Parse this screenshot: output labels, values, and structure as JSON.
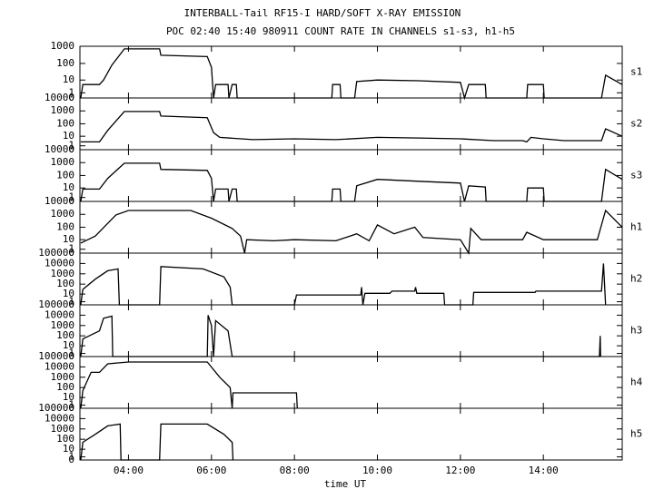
{
  "chart_data": [
    {
      "type": "line",
      "title": "INTERBALL-Tail RF15-I HARD/SOFT X-RAY EMISSION",
      "subtitle": "POC 02:40 15:40 980911  COUNT RATE IN CHANNELS s1-s3, h1-h5",
      "yscale": "log1p",
      "ylim": [
        0,
        1000
      ],
      "yticks": [
        0,
        1,
        10,
        100,
        1000
      ],
      "x": [
        2.85,
        2.9,
        3.3,
        3.4,
        3.6,
        3.9,
        4.75,
        4.78,
        5.9,
        6.0,
        6.05,
        6.1,
        6.4,
        6.42,
        6.5,
        6.6,
        6.62,
        8.9,
        8.92,
        9.1,
        9.12,
        9.45,
        9.5,
        10,
        11,
        12,
        12.1,
        12.2,
        12.6,
        12.62,
        13.6,
        13.62,
        14.0,
        14.02,
        15.4,
        15.5,
        15.9
      ],
      "series": [
        {
          "name": "s1",
          "color": "#000000",
          "values": [
            0,
            5,
            5,
            10,
            80,
            700,
            700,
            300,
            250,
            60,
            0,
            5,
            5,
            0,
            5,
            5,
            0,
            0,
            5,
            5,
            0,
            0,
            8,
            10,
            9,
            7,
            0,
            5,
            5,
            0,
            0,
            5,
            5,
            0,
            0,
            20,
            5
          ]
        }
      ]
    },
    {
      "type": "line",
      "yscale": "log1p",
      "ylim": [
        0,
        10000
      ],
      "yticks": [
        0,
        1,
        10,
        100,
        1000,
        10000
      ],
      "x": [
        2.85,
        3.3,
        3.5,
        3.9,
        4.75,
        4.78,
        5.9,
        6.05,
        6.2,
        7,
        8,
        9,
        10,
        11,
        12,
        12.8,
        13.5,
        13.6,
        13.7,
        14,
        14.5,
        15.4,
        15.5,
        15.9
      ],
      "series": [
        {
          "name": "s2",
          "color": "#000000",
          "values": [
            3,
            3,
            30,
            900,
            900,
            400,
            300,
            20,
            8,
            5,
            6,
            5,
            8,
            7,
            6,
            4,
            4,
            3,
            8,
            6,
            4,
            4,
            40,
            10
          ]
        }
      ]
    },
    {
      "type": "line",
      "yscale": "log1p",
      "ylim": [
        0,
        10000
      ],
      "yticks": [
        0,
        1,
        10,
        100,
        1000,
        10000
      ],
      "x": [
        2.85,
        2.9,
        3.3,
        3.5,
        3.9,
        4.75,
        4.78,
        5.9,
        6.0,
        6.05,
        6.1,
        6.4,
        6.42,
        6.5,
        6.6,
        6.62,
        8.9,
        8.92,
        9.1,
        9.12,
        9.45,
        9.5,
        10,
        11,
        12,
        12.1,
        12.2,
        12.6,
        12.62,
        13.6,
        13.62,
        14,
        14.02,
        15.4,
        15.5,
        15.9
      ],
      "series": [
        {
          "name": "s3",
          "color": "#000000",
          "values": [
            0,
            8,
            8,
            60,
            900,
            900,
            300,
            250,
            60,
            0,
            8,
            8,
            0,
            8,
            8,
            0,
            0,
            8,
            8,
            0,
            0,
            15,
            50,
            35,
            25,
            0,
            15,
            12,
            0,
            0,
            10,
            10,
            0,
            0,
            300,
            50
          ]
        }
      ]
    },
    {
      "type": "line",
      "yscale": "log1p",
      "ylim": [
        0,
        10000
      ],
      "yticks": [
        0,
        1,
        10,
        100,
        1000,
        10000
      ],
      "x": [
        2.85,
        3.2,
        3.5,
        3.7,
        4,
        5.5,
        6,
        6.5,
        6.7,
        6.8,
        6.85,
        7.5,
        8,
        9,
        9.5,
        9.8,
        10,
        10.4,
        10.9,
        11.1,
        12,
        12.2,
        12.25,
        12.5,
        13.5,
        13.6,
        14,
        15.3,
        15.5,
        15.9
      ],
      "series": [
        {
          "name": "h1",
          "color": "#000000",
          "values": [
            5,
            20,
            200,
            900,
            2000,
            2000,
            500,
            80,
            20,
            0,
            10,
            8,
            10,
            8,
            30,
            8,
            150,
            30,
            100,
            15,
            10,
            0,
            80,
            10,
            10,
            40,
            10,
            10,
            2000,
            100
          ]
        }
      ]
    },
    {
      "type": "line",
      "yscale": "log1p",
      "ylim": [
        0,
        100000
      ],
      "yticks": [
        0,
        1,
        10,
        100,
        1000,
        10000,
        100000
      ],
      "x": [
        2.85,
        2.9,
        3.2,
        3.5,
        3.75,
        3.78,
        4.75,
        4.78,
        5.8,
        6.3,
        6.45,
        6.5,
        8.0,
        8.05,
        9.6,
        9.62,
        9.65,
        9.7,
        10.3,
        10.35,
        10.9,
        10.92,
        10.95,
        11.6,
        11.62,
        12.3,
        12.32,
        13.8,
        13.82,
        15.4,
        15.45,
        15.5
      ],
      "series": [
        {
          "name": "h2",
          "color": "#000000",
          "values": [
            0,
            30,
            300,
            2000,
            3000,
            0,
            0,
            5000,
            3000,
            500,
            50,
            0,
            0,
            8,
            8,
            50,
            0,
            12,
            12,
            20,
            20,
            50,
            12,
            12,
            0,
            0,
            15,
            15,
            20,
            20,
            10000,
            0
          ]
        }
      ]
    },
    {
      "type": "line",
      "yscale": "log1p",
      "ylim": [
        0,
        100000
      ],
      "yticks": [
        0,
        1,
        10,
        100,
        1000,
        10000,
        100000
      ],
      "x": [
        2.85,
        2.9,
        3.3,
        3.4,
        3.6,
        3.62,
        5.9,
        5.92,
        6.0,
        6.05,
        6.1,
        6.4,
        6.5,
        15.35,
        15.37,
        15.38
      ],
      "series": [
        {
          "name": "h3",
          "color": "#000000",
          "values": [
            0,
            50,
            300,
            5000,
            8000,
            0,
            0,
            10000,
            1000,
            0,
            3000,
            300,
            0,
            0,
            100,
            0
          ]
        }
      ]
    },
    {
      "type": "line",
      "yscale": "log1p",
      "ylim": [
        0,
        100000
      ],
      "yticks": [
        0,
        1,
        10,
        100,
        1000,
        10000,
        100000
      ],
      "x": [
        2.85,
        2.9,
        3.1,
        3.3,
        3.5,
        4,
        5.9,
        6.2,
        6.45,
        6.5,
        6.52,
        8.05,
        8.07
      ],
      "series": [
        {
          "name": "h4",
          "color": "#000000",
          "values": [
            0,
            50,
            3000,
            3000,
            20000,
            30000,
            30000,
            1000,
            100,
            0,
            30,
            30,
            0
          ]
        }
      ]
    },
    {
      "type": "line",
      "yscale": "log1p",
      "ylim": [
        0,
        100000
      ],
      "yticks": [
        0,
        1,
        10,
        100,
        1000,
        10000,
        100000
      ],
      "x": [
        2.85,
        2.9,
        3.2,
        3.5,
        3.8,
        3.82,
        4.75,
        4.78,
        5.9,
        6.3,
        6.5,
        6.52
      ],
      "series": [
        {
          "name": "h5",
          "color": "#000000",
          "values": [
            0,
            50,
            300,
            2000,
            3000,
            0,
            0,
            3000,
            3000,
            300,
            50,
            0
          ]
        }
      ],
      "xlabel": "time UT",
      "xlim": [
        2.83,
        15.9
      ],
      "xticks": [
        {
          "value": 4,
          "label": "04:00"
        },
        {
          "value": 6,
          "label": "06:00"
        },
        {
          "value": 8,
          "label": "08:00"
        },
        {
          "value": 10,
          "label": "10:00"
        },
        {
          "value": 12,
          "label": "12:00"
        },
        {
          "value": 14,
          "label": "14:00"
        }
      ]
    }
  ]
}
